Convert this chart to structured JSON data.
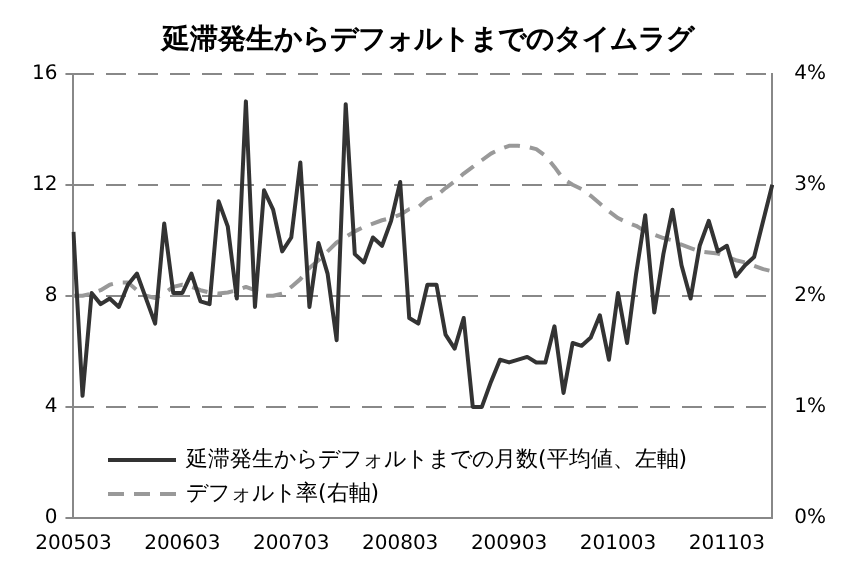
{
  "chart_data": {
    "type": "line",
    "title": "延滞発生からデフォルトまでのタイムラグ",
    "categories": [
      "200503",
      null,
      null,
      null,
      null,
      null,
      null,
      null,
      null,
      null,
      null,
      null,
      "200603",
      null,
      null,
      null,
      null,
      null,
      null,
      null,
      null,
      null,
      null,
      null,
      "200703",
      null,
      null,
      null,
      null,
      null,
      null,
      null,
      null,
      null,
      null,
      null,
      "200803",
      null,
      null,
      null,
      null,
      null,
      null,
      null,
      null,
      null,
      null,
      null,
      "200903",
      null,
      null,
      null,
      null,
      null,
      null,
      null,
      null,
      null,
      null,
      null,
      "201003",
      null,
      null,
      null,
      null,
      null,
      null,
      null,
      null,
      null,
      null,
      null,
      "201103",
      null,
      null,
      null,
      null,
      null
    ],
    "series": [
      {
        "name": "延滞発生からデフォルトまでの月数(平均値、左軸)",
        "color": "#333333",
        "line_style": "solid",
        "values": [
          10.3,
          4.4,
          8.1,
          7.7,
          7.9,
          7.6,
          8.4,
          8.8,
          7.9,
          7.0,
          10.6,
          8.1,
          8.1,
          8.8,
          7.8,
          7.7,
          11.4,
          10.5,
          7.9,
          15.0,
          7.6,
          11.8,
          11.1,
          9.6,
          10.1,
          12.8,
          7.6,
          9.9,
          8.8,
          6.4,
          14.9,
          9.5,
          9.2,
          10.1,
          9.8,
          10.7,
          12.1,
          7.2,
          7.0,
          8.4,
          8.4,
          6.6,
          6.1,
          7.2,
          4.0,
          4.0,
          4.9,
          5.7,
          5.6,
          5.7,
          5.8,
          5.6,
          5.6,
          6.9,
          4.5,
          6.3,
          6.2,
          6.5,
          7.3,
          5.7,
          8.1,
          6.3,
          8.8,
          10.9,
          7.4,
          9.5,
          11.1,
          9.1,
          7.9,
          9.8,
          10.7,
          9.6,
          9.8,
          8.7,
          9.1,
          9.4,
          10.7,
          12.0
        ]
      },
      {
        "name": "デフォルト率(右軸)",
        "color": "#999999",
        "line_style": "dashed",
        "axis": "y2",
        "values": [
          2.0,
          2.0,
          2.02,
          2.05,
          2.1,
          2.12,
          2.12,
          2.05,
          2.0,
          1.98,
          2.02,
          2.08,
          2.1,
          2.08,
          2.05,
          2.03,
          2.02,
          2.03,
          2.05,
          2.08,
          2.05,
          2.0,
          2.0,
          2.02,
          2.08,
          2.15,
          2.25,
          2.32,
          2.4,
          2.48,
          2.53,
          2.58,
          2.62,
          2.65,
          2.68,
          2.7,
          2.73,
          2.78,
          2.8,
          2.87,
          2.9,
          2.97,
          3.03,
          3.1,
          3.16,
          3.22,
          3.28,
          3.32,
          3.35,
          3.35,
          3.34,
          3.32,
          3.26,
          3.16,
          3.05,
          3.0,
          2.96,
          2.9,
          2.83,
          2.76,
          2.7,
          2.66,
          2.63,
          2.58,
          2.55,
          2.52,
          2.5,
          2.46,
          2.43,
          2.4,
          2.39,
          2.38,
          2.35,
          2.32,
          2.3,
          2.27,
          2.24,
          2.22
        ]
      }
    ],
    "ylim": [
      0,
      16
    ],
    "yticks": [
      0,
      4,
      8,
      12,
      16
    ],
    "y2lim": [
      0,
      4
    ],
    "y2ticks": [
      {
        "value": 0,
        "label": "0%"
      },
      {
        "value": 1,
        "label": "1%"
      },
      {
        "value": 2,
        "label": "2%"
      },
      {
        "value": 3,
        "label": "3%"
      },
      {
        "value": 4,
        "label": "4%"
      }
    ],
    "grid": "y",
    "legend": "bottom left"
  }
}
